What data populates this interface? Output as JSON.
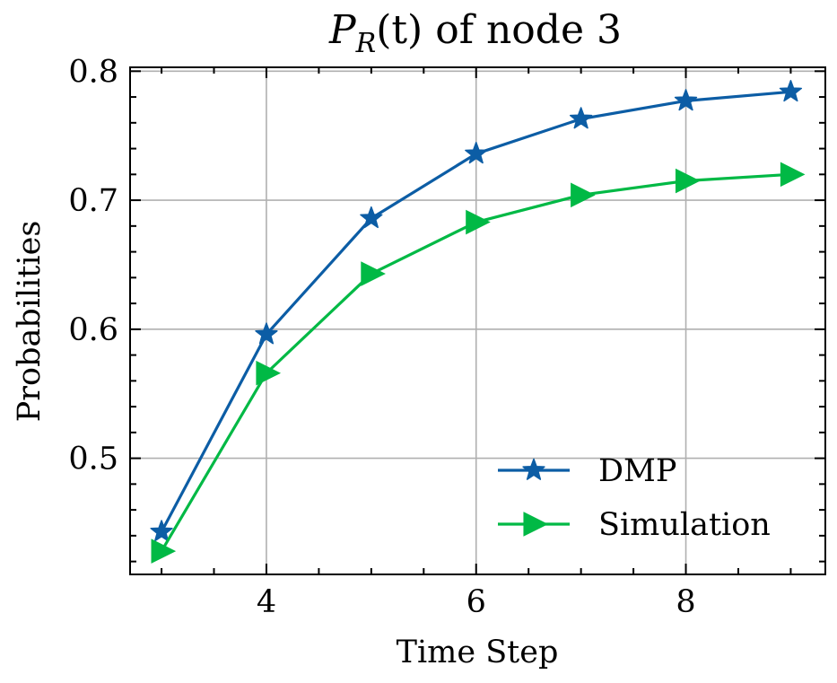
{
  "chart_data": {
    "type": "line",
    "title": {
      "prefix": "P",
      "subscript": "R",
      "suffix": "(t) of node 3"
    },
    "xlabel": "Time Step",
    "ylabel": "Probabilities",
    "xlim": [
      2.7,
      9.33
    ],
    "ylim": [
      0.41,
      0.803
    ],
    "xticks": [
      4,
      6,
      8
    ],
    "yticks": [
      0.5,
      0.6,
      0.7,
      0.8
    ],
    "xtick_labels": [
      "4",
      "6",
      "8"
    ],
    "ytick_labels": [
      "0.5",
      "0.6",
      "0.7",
      "0.8"
    ],
    "x_minor_step": 0.5,
    "y_minor_step": 0.02,
    "grid": true,
    "legend_position": "lower-right",
    "x": [
      3,
      4,
      5,
      6,
      7,
      8,
      9
    ],
    "series": [
      {
        "name": "DMP",
        "values": [
          0.443,
          0.596,
          0.686,
          0.736,
          0.763,
          0.777,
          0.784
        ],
        "color": "#0c5da5",
        "marker": "star"
      },
      {
        "name": "Simulation",
        "values": [
          0.428,
          0.566,
          0.643,
          0.683,
          0.704,
          0.715,
          0.72
        ],
        "color": "#00b945",
        "marker": "triangle-right"
      }
    ]
  }
}
